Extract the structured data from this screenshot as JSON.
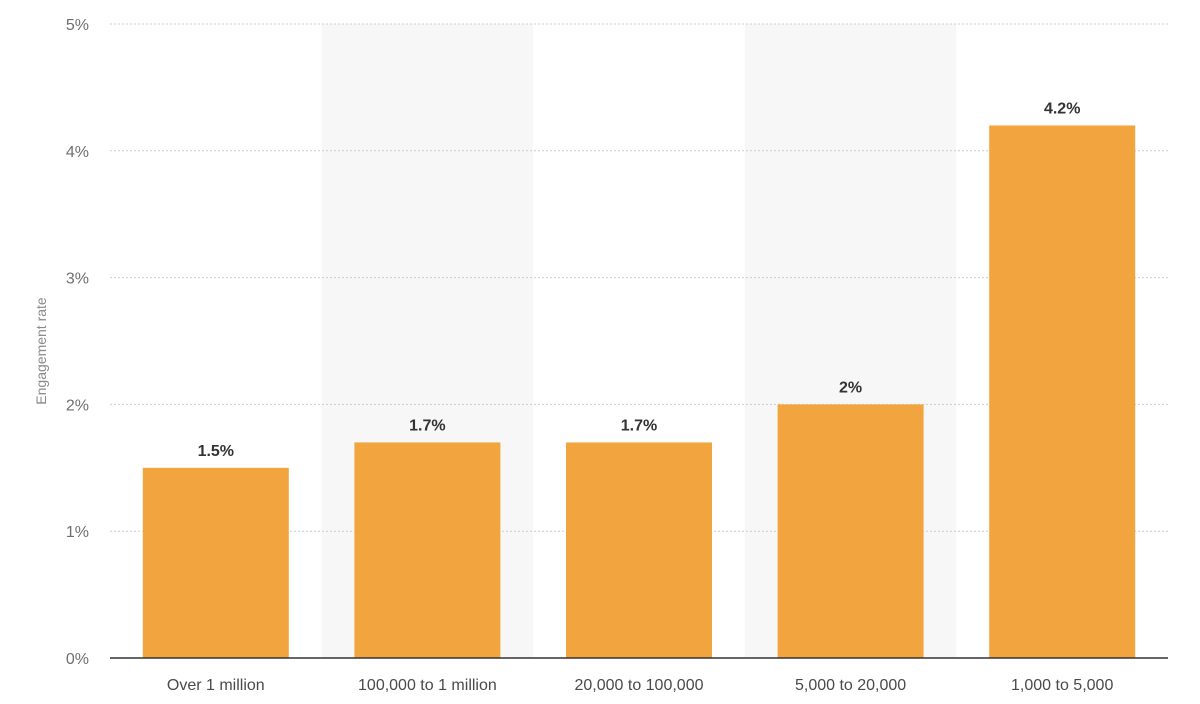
{
  "chart_data": {
    "type": "bar",
    "title": "",
    "xlabel": "",
    "ylabel": "Engagement rate",
    "categories": [
      "Over 1 million",
      "100,000 to 1 million",
      "20,000 to 100,000",
      "5,000 to 20,000",
      "1,000 to 5,000"
    ],
    "values": [
      1.5,
      1.7,
      1.7,
      2,
      4.2
    ],
    "data_labels": [
      "1.5%",
      "1.7%",
      "1.7%",
      "2%",
      "4.2%"
    ],
    "ylim": [
      0,
      5
    ],
    "yticks": [
      0,
      1,
      2,
      3,
      4,
      5
    ],
    "ytick_labels": [
      "0%",
      "1%",
      "2%",
      "3%",
      "4%",
      "5%"
    ],
    "grid": true,
    "legend": "none",
    "colors": {
      "bar": "#f2a53f",
      "band_alt": "#f7f7f7",
      "grid": "#cccccc",
      "axis": "#333333"
    }
  }
}
